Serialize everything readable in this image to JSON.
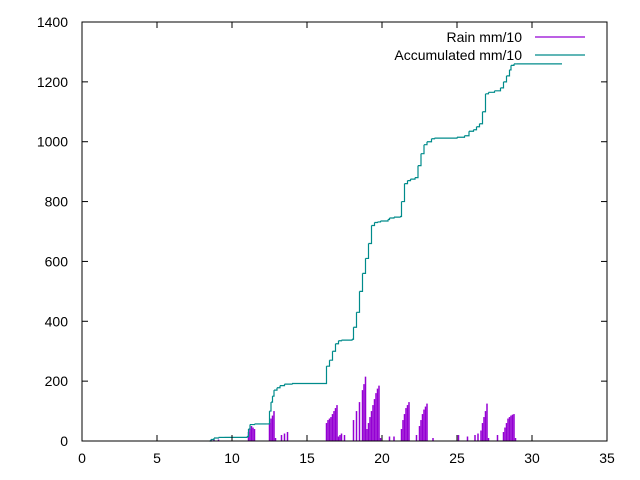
{
  "chart_data": {
    "type": "line",
    "title": "",
    "xlabel": "",
    "ylabel": "",
    "xlim": [
      0,
      35
    ],
    "ylim": [
      0,
      1400
    ],
    "xticks": [
      0,
      5,
      10,
      15,
      20,
      25,
      30,
      35
    ],
    "yticks": [
      0,
      200,
      400,
      600,
      800,
      1000,
      1200,
      1400
    ],
    "xtick_labels": [
      "0",
      "5",
      "10",
      "15",
      "20",
      "25",
      "30",
      "35"
    ],
    "ytick_labels": [
      "0",
      "200",
      "400",
      "600",
      "800",
      "1000",
      "1200",
      "1400"
    ],
    "grid": false,
    "legend_position": "top-right",
    "series": [
      {
        "name": "Rain mm/10",
        "style": "impulses",
        "color": "#9400d3",
        "x": [
          8.6,
          8.8,
          9.1,
          11.1,
          11.2,
          11.3,
          11.4,
          11.5,
          12.5,
          12.6,
          12.7,
          12.8,
          12.9,
          13.3,
          13.5,
          13.7,
          16.3,
          16.4,
          16.5,
          16.6,
          16.7,
          16.8,
          16.9,
          17.0,
          17.1,
          17.2,
          17.3,
          17.5,
          18.1,
          18.3,
          18.5,
          18.7,
          18.8,
          18.9,
          19.0,
          19.1,
          19.2,
          19.3,
          19.4,
          19.5,
          19.6,
          19.7,
          19.8,
          19.9,
          20.5,
          20.8,
          21.3,
          21.4,
          21.5,
          21.6,
          21.7,
          21.8,
          22.3,
          22.5,
          22.6,
          22.7,
          22.8,
          22.9,
          23.0,
          23.4,
          25.1,
          25.7,
          26.2,
          26.4,
          26.6,
          26.7,
          26.8,
          26.9,
          27.0,
          27.1,
          27.7,
          28.1,
          28.2,
          28.3,
          28.4,
          28.5,
          28.6,
          28.7,
          28.8,
          28.9
        ],
        "values": [
          5,
          5,
          5,
          30,
          40,
          50,
          45,
          40,
          60,
          75,
          85,
          100,
          10,
          20,
          25,
          30,
          60,
          70,
          75,
          80,
          90,
          100,
          110,
          120,
          15,
          20,
          25,
          20,
          70,
          100,
          130,
          170,
          190,
          215,
          40,
          60,
          80,
          100,
          120,
          140,
          160,
          175,
          185,
          10,
          15,
          15,
          40,
          70,
          90,
          110,
          120,
          130,
          20,
          50,
          70,
          90,
          105,
          115,
          125,
          10,
          20,
          15,
          20,
          25,
          35,
          60,
          80,
          100,
          125,
          10,
          20,
          30,
          45,
          60,
          75,
          80,
          85,
          88,
          90,
          10
        ]
      },
      {
        "name": "Accumulated mm/10",
        "style": "line",
        "color": "#008b8b",
        "x": [
          8.5,
          8.6,
          8.8,
          9.1,
          9.5,
          11.0,
          11.1,
          11.2,
          11.5,
          12.3,
          12.5,
          12.6,
          12.7,
          12.8,
          13.0,
          13.2,
          13.5,
          14.0,
          16.2,
          16.3,
          16.5,
          16.7,
          16.9,
          17.1,
          17.3,
          18.0,
          18.1,
          18.3,
          18.5,
          18.7,
          18.9,
          19.1,
          19.3,
          19.5,
          19.7,
          19.9,
          20.4,
          20.5,
          20.8,
          21.2,
          21.3,
          21.5,
          21.7,
          21.9,
          22.2,
          22.4,
          22.6,
          22.8,
          23.0,
          23.3,
          23.5,
          25.0,
          25.5,
          25.8,
          26.1,
          26.3,
          26.5,
          26.7,
          26.9,
          27.1,
          27.5,
          27.9,
          28.1,
          28.3,
          28.5,
          28.6,
          28.8,
          29.0,
          32.0
        ],
        "values": [
          0,
          5,
          10,
          12,
          12,
          15,
          40,
          55,
          57,
          57,
          100,
          130,
          150,
          170,
          178,
          185,
          190,
          192,
          192,
          250,
          270,
          300,
          325,
          335,
          337,
          340,
          380,
          430,
          500,
          560,
          610,
          660,
          720,
          730,
          732,
          735,
          740,
          745,
          748,
          750,
          800,
          860,
          870,
          875,
          880,
          920,
          960,
          990,
          1000,
          1010,
          1012,
          1015,
          1020,
          1035,
          1040,
          1050,
          1060,
          1100,
          1160,
          1165,
          1170,
          1180,
          1200,
          1220,
          1240,
          1255,
          1260,
          1260,
          1260
        ]
      }
    ]
  }
}
